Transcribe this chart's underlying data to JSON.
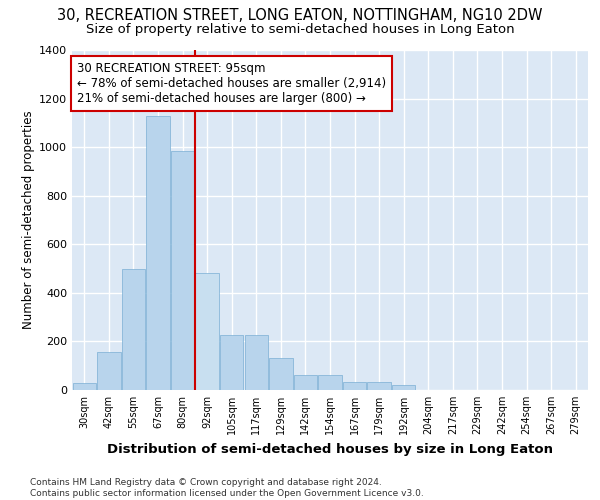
{
  "title1": "30, RECREATION STREET, LONG EATON, NOTTINGHAM, NG10 2DW",
  "title2": "Size of property relative to semi-detached houses in Long Eaton",
  "xlabel": "Distribution of semi-detached houses by size in Long Eaton",
  "ylabel": "Number of semi-detached properties",
  "footnote": "Contains HM Land Registry data © Crown copyright and database right 2024.\nContains public sector information licensed under the Open Government Licence v3.0.",
  "bar_categories": [
    "30sqm",
    "42sqm",
    "55sqm",
    "67sqm",
    "80sqm",
    "92sqm",
    "105sqm",
    "117sqm",
    "129sqm",
    "142sqm",
    "154sqm",
    "167sqm",
    "179sqm",
    "192sqm",
    "204sqm",
    "217sqm",
    "229sqm",
    "242sqm",
    "254sqm",
    "267sqm",
    "279sqm"
  ],
  "bar_values": [
    30,
    155,
    500,
    1130,
    985,
    480,
    225,
    225,
    130,
    60,
    60,
    35,
    35,
    20,
    0,
    0,
    0,
    0,
    0,
    0,
    0
  ],
  "bar_color": "#b8d4ec",
  "bar_edge_color": "#7aafd4",
  "highlight_bar_index": 5,
  "highlight_bar_color": "#c8dff0",
  "vline_color": "#cc0000",
  "annotation_text": "30 RECREATION STREET: 95sqm\n← 78% of semi-detached houses are smaller (2,914)\n21% of semi-detached houses are larger (800) →",
  "annotation_box_color": "#ffffff",
  "annotation_box_edge_color": "#cc0000",
  "ylim": [
    0,
    1400
  ],
  "plot_bg_color": "#dce8f5",
  "fig_bg_color": "#ffffff",
  "grid_color": "#ffffff",
  "title1_fontsize": 10.5,
  "title2_fontsize": 9.5,
  "ylabel_fontsize": 8.5,
  "xlabel_fontsize": 9.5,
  "annotation_fontsize": 8.5,
  "footnote_fontsize": 6.5
}
